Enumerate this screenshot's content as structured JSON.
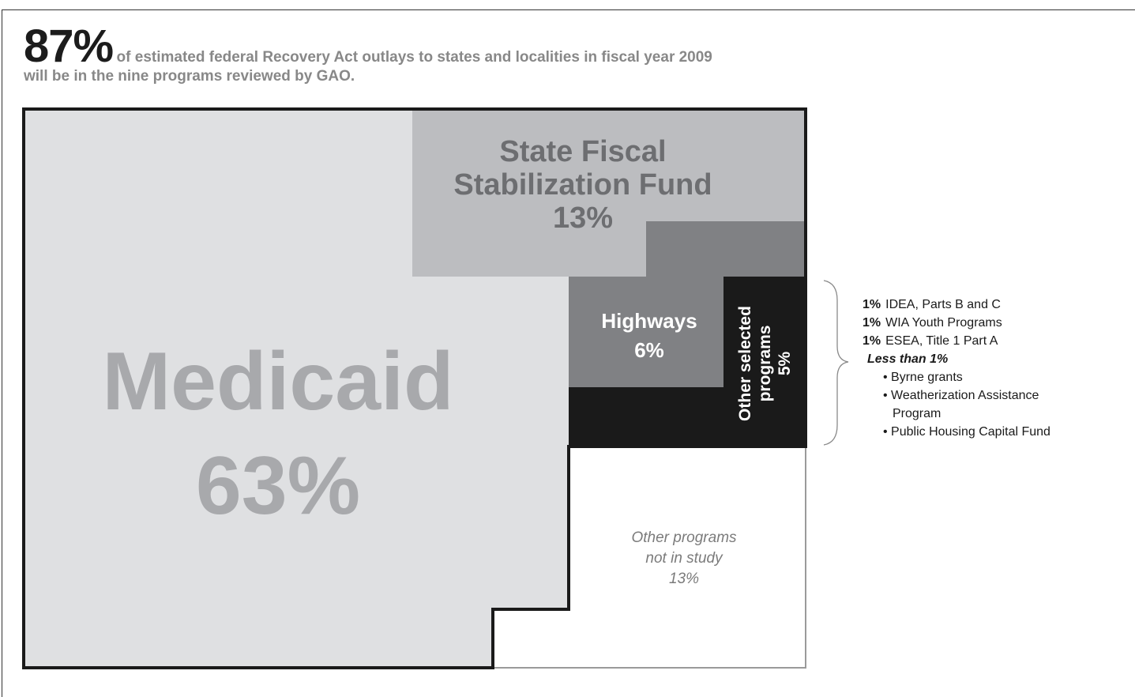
{
  "headline": {
    "big": "87%",
    "rest": "of estimated federal Recovery Act outlays to states and localities in fiscal year 2009",
    "line2": "will be in the nine programs reviewed by GAO."
  },
  "chart_data": {
    "type": "treemap",
    "segments": [
      {
        "name": "Medicaid",
        "percent": 63,
        "label_lines": [
          "Medicaid",
          "63%"
        ],
        "color": "#dfe0e2"
      },
      {
        "name": "State Fiscal Stabilization Fund",
        "percent": 13,
        "label_lines": [
          "State Fiscal",
          "Stabilization Fund",
          "13%"
        ],
        "color": "#bcbdc0"
      },
      {
        "name": "Highways",
        "percent": 6,
        "label_lines": [
          "Highways",
          "6%"
        ],
        "color": "#808184"
      },
      {
        "name": "Other selected programs",
        "percent": 5,
        "label_lines": [
          "Other selected",
          "programs",
          "5%"
        ],
        "color": "#1a1a1a"
      },
      {
        "name": "Other programs not in study",
        "percent": 13,
        "label_lines": [
          "Other programs",
          "not in study",
          "13%"
        ],
        "color": "#ffffff"
      }
    ],
    "breakdown": {
      "items": [
        {
          "pct": "1%",
          "label": "IDEA, Parts B and C"
        },
        {
          "pct": "1%",
          "label": "WIA Youth Programs"
        },
        {
          "pct": "1%",
          "label": "ESEA, Title 1 Part A"
        }
      ],
      "less_label": "Less than 1%",
      "less_items": [
        {
          "first": "• Byrne grants",
          "second": ""
        },
        {
          "first": "• Weatherization Assistance",
          "second": "Program"
        },
        {
          "first": "• Public Housing Capital Fund",
          "second": ""
        }
      ]
    }
  }
}
